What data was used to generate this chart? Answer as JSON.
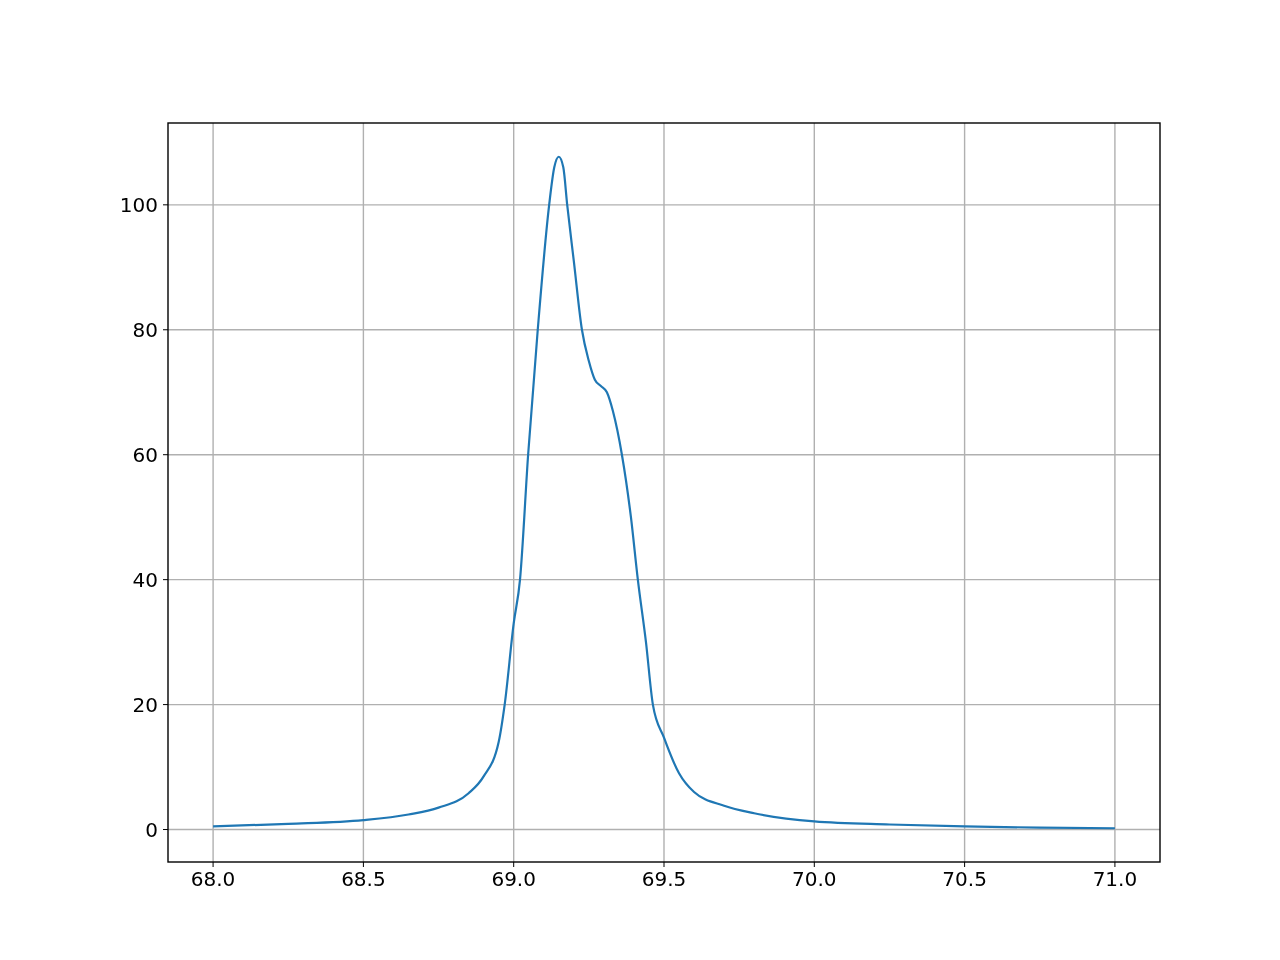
{
  "chart_data": {
    "type": "line",
    "x": [
      68.0,
      68.25,
      68.5,
      68.65,
      68.75,
      68.85,
      68.9,
      68.95,
      68.97,
      69.0,
      69.021,
      69.048,
      69.08,
      69.118,
      69.135,
      69.15,
      69.165,
      69.178,
      69.2,
      69.227,
      69.25,
      69.27,
      69.29,
      69.31,
      69.33,
      69.36,
      69.39,
      69.413,
      69.44,
      69.463,
      69.5,
      69.55,
      69.6,
      69.7,
      69.8,
      70.0,
      70.25,
      70.5,
      70.75,
      71.0
    ],
    "series": [
      {
        "color": "#1f77b4",
        "values": [
          0.5,
          0.9,
          1.5,
          2.4,
          3.5,
          5.8,
          8.5,
          14,
          20,
          33,
          40,
          60,
          80,
          100,
          106,
          107.7,
          106,
          100,
          91,
          80,
          75,
          72,
          71,
          70,
          67,
          60,
          50,
          40,
          30,
          20,
          14.7,
          9,
          6,
          3.8,
          2.6,
          1.3,
          0.8,
          0.5,
          0.3,
          0.2
        ]
      }
    ],
    "xlim": [
      67.85,
      71.15
    ],
    "ylim": [
      -5.2,
      113.1
    ],
    "xticks": [
      {
        "value": 68,
        "label": "68.0"
      },
      {
        "value": 68.5,
        "label": "68.5"
      },
      {
        "value": 69,
        "label": "69.0"
      },
      {
        "value": 69.5,
        "label": "69.5"
      },
      {
        "value": 70,
        "label": "70.0"
      },
      {
        "value": 70.5,
        "label": "70.5"
      },
      {
        "value": 71,
        "label": "71.0"
      }
    ],
    "yticks": [
      0,
      20,
      40,
      60,
      80,
      100
    ],
    "grid": true,
    "line_style": "solid"
  }
}
